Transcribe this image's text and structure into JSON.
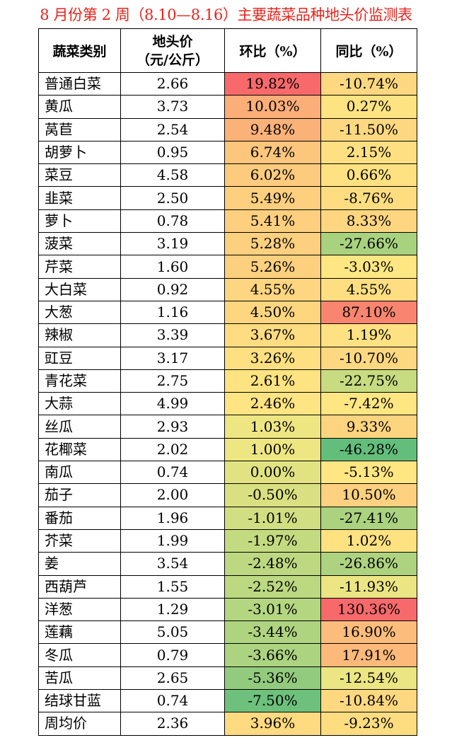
{
  "title": "8 月份第 2 周（8.10—8.16）主要蔬菜品种地头价监测表",
  "headers": {
    "name": "蔬菜类别",
    "price_line1": "地头价",
    "price_line2": "（元/公斤）",
    "mom": "环比（%）",
    "yoy": "同比（%）"
  },
  "rows": [
    {
      "name": "普通白菜",
      "price": "2.66",
      "mom": "19.82%",
      "yoy": "-10.74%",
      "mom_color": "#f8696b",
      "yoy_color": "#fed880"
    },
    {
      "name": "黄瓜",
      "price": "3.73",
      "mom": "10.03%",
      "yoy": "0.27%",
      "mom_color": "#fbae78",
      "yoy_color": "#fee382"
    },
    {
      "name": "莴苣",
      "price": "2.54",
      "mom": "9.48%",
      "yoy": "-11.50%",
      "mom_color": "#fbb279",
      "yoy_color": "#fed880"
    },
    {
      "name": "胡萝卜",
      "price": "0.95",
      "mom": "6.74%",
      "yoy": "2.15%",
      "mom_color": "#fdc67d",
      "yoy_color": "#fee082"
    },
    {
      "name": "菜豆",
      "price": "4.58",
      "mom": "6.02%",
      "yoy": "0.66%",
      "mom_color": "#fdcb7e",
      "yoy_color": "#fee282"
    },
    {
      "name": "韭菜",
      "price": "2.50",
      "mom": "5.49%",
      "yoy": "-8.76%",
      "mom_color": "#fdcf7f",
      "yoy_color": "#fedd81"
    },
    {
      "name": "萝卜",
      "price": "0.78",
      "mom": "5.41%",
      "yoy": "8.33%",
      "mom_color": "#fdcf7f",
      "yoy_color": "#fed680"
    },
    {
      "name": "菠菜",
      "price": "3.19",
      "mom": "5.28%",
      "yoy": "-27.66%",
      "mom_color": "#fdd07f",
      "yoy_color": "#a9d27f"
    },
    {
      "name": "芹菜",
      "price": "1.60",
      "mom": "5.26%",
      "yoy": "-3.03%",
      "mom_color": "#fdd07f",
      "yoy_color": "#fee682"
    },
    {
      "name": "大白菜",
      "price": "0.92",
      "mom": "4.55%",
      "yoy": "4.55%",
      "mom_color": "#fed580",
      "yoy_color": "#fede81"
    },
    {
      "name": "大葱",
      "price": "1.16",
      "mom": "4.50%",
      "yoy": "87.10%",
      "mom_color": "#fed680",
      "yoy_color": "#f98570"
    },
    {
      "name": "辣椒",
      "price": "3.39",
      "mom": "3.67%",
      "yoy": "1.19%",
      "mom_color": "#fedc81",
      "yoy_color": "#fee182"
    },
    {
      "name": "豇豆",
      "price": "3.17",
      "mom": "3.26%",
      "yoy": "-10.70%",
      "mom_color": "#fedf81",
      "yoy_color": "#fed880"
    },
    {
      "name": "青花菜",
      "price": "2.75",
      "mom": "2.61%",
      "yoy": "-22.75%",
      "mom_color": "#fee382",
      "yoy_color": "#c7db81"
    },
    {
      "name": "大蒜",
      "price": "4.99",
      "mom": "2.46%",
      "yoy": "-7.42%",
      "mom_color": "#fee482",
      "yoy_color": "#fee682"
    },
    {
      "name": "丝瓜",
      "price": "2.93",
      "mom": "1.03%",
      "yoy": "9.33%",
      "mom_color": "#eee683",
      "yoy_color": "#fdd47f"
    },
    {
      "name": "花椰菜",
      "price": "2.02",
      "mom": "1.00%",
      "yoy": "-46.28%",
      "mom_color": "#eee683",
      "yoy_color": "#63be7b"
    },
    {
      "name": "南瓜",
      "price": "0.74",
      "mom": "0.00%",
      "yoy": "-5.13%",
      "mom_color": "#e1e383",
      "yoy_color": "#fee682"
    },
    {
      "name": "茄子",
      "price": "2.00",
      "mom": "-0.50%",
      "yoy": "10.50%",
      "mom_color": "#d9e082",
      "yoy_color": "#fdd17f"
    },
    {
      "name": "番茄",
      "price": "1.96",
      "mom": "-1.01%",
      "yoy": "-27.41%",
      "mom_color": "#d2de82",
      "yoy_color": "#abd27f"
    },
    {
      "name": "芥菜",
      "price": "1.99",
      "mom": "-1.97%",
      "yoy": "1.02%",
      "mom_color": "#c4da81",
      "yoy_color": "#fee282"
    },
    {
      "name": "姜",
      "price": "3.54",
      "mom": "-2.48%",
      "yoy": "-26.86%",
      "mom_color": "#bdd881",
      "yoy_color": "#aed380"
    },
    {
      "name": "西葫芦",
      "price": "1.55",
      "mom": "-2.52%",
      "yoy": "-11.93%",
      "mom_color": "#bcd881",
      "yoy_color": "#ebe583"
    },
    {
      "name": "洋葱",
      "price": "1.29",
      "mom": "-3.01%",
      "yoy": "130.36%",
      "mom_color": "#b5d680",
      "yoy_color": "#f8696b"
    },
    {
      "name": "莲藕",
      "price": "5.05",
      "mom": "-3.44%",
      "yoy": "16.90%",
      "mom_color": "#afd480",
      "yoy_color": "#fcbc7b"
    },
    {
      "name": "冬瓜",
      "price": "0.79",
      "mom": "-3.66%",
      "yoy": "17.91%",
      "mom_color": "#acd37f",
      "yoy_color": "#fcb97a"
    },
    {
      "name": "苦瓜",
      "price": "2.65",
      "mom": "-5.36%",
      "yoy": "-12.54%",
      "mom_color": "#93cb7e",
      "yoy_color": "#ebe583"
    },
    {
      "name": "结球甘蓝",
      "price": "0.74",
      "mom": "-7.50%",
      "yoy": "-10.84%",
      "mom_color": "#6ec17c",
      "yoy_color": "#fed880"
    },
    {
      "name": "周均价",
      "price": "2.36",
      "mom": "3.96%",
      "yoy": "-9.23%",
      "mom_color": "#feda81",
      "yoy_color": "#fedd81"
    }
  ]
}
